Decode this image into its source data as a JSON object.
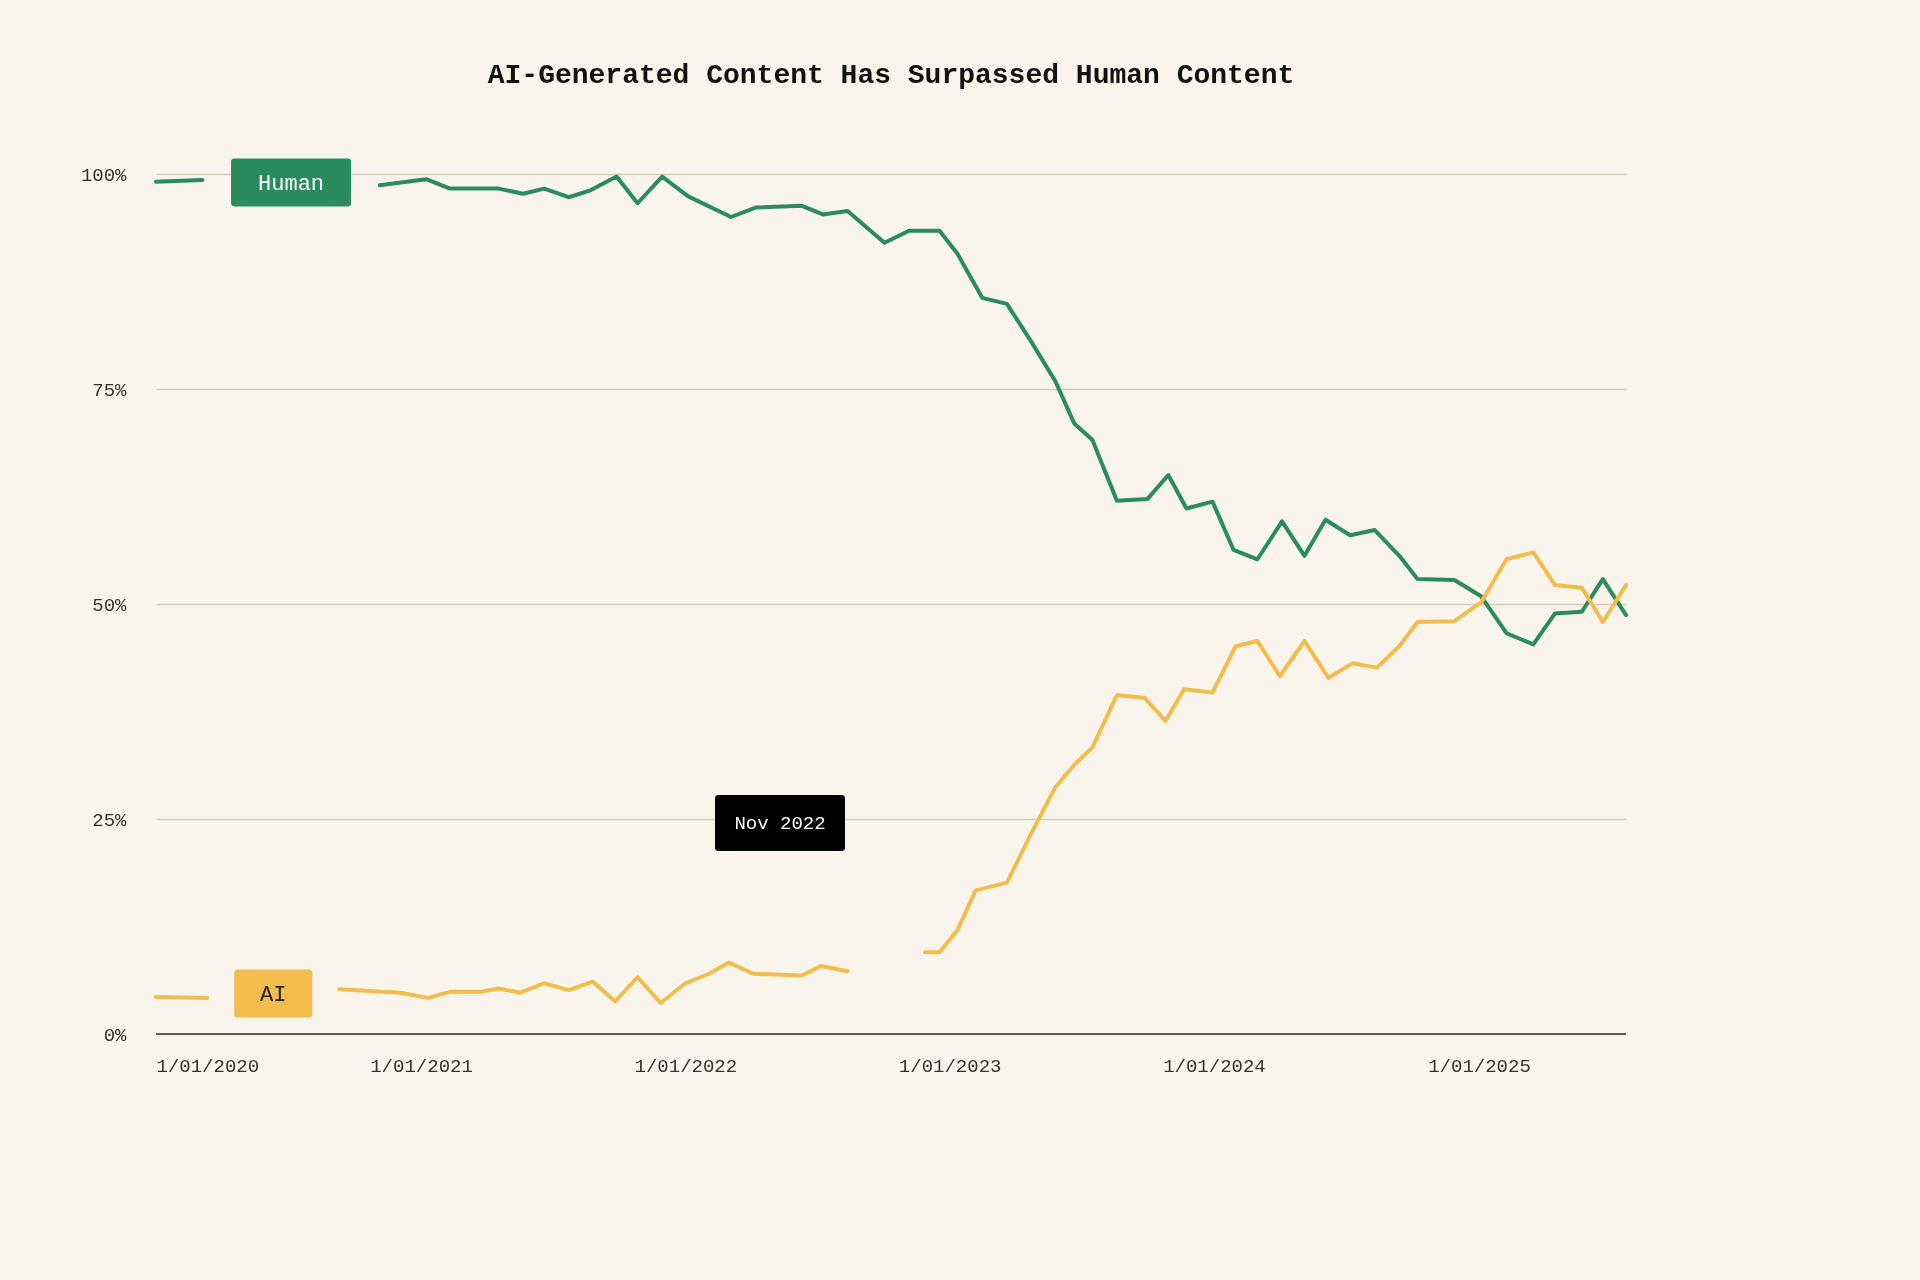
{
  "chart_data": {
    "type": "line",
    "title": "AI-Generated Content Has Surpassed Human Content",
    "xlim": [
      "2020-01-01",
      "2025-07-23"
    ],
    "xticks": [
      {
        "value": "2020-01-01",
        "label": "1/01/2020"
      },
      {
        "value": "2021-01-01",
        "label": "1/01/2021"
      },
      {
        "value": "2022-01-01",
        "label": "1/01/2022"
      },
      {
        "value": "2023-01-01",
        "label": "1/01/2023"
      },
      {
        "value": "2024-01-01",
        "label": "1/01/2024"
      },
      {
        "value": "2025-01-01",
        "label": "1/01/2025"
      }
    ],
    "ylim": [
      0,
      100
    ],
    "yticks": [
      {
        "value": 0,
        "label": "0%"
      },
      {
        "value": 25,
        "label": "25%"
      },
      {
        "value": 50,
        "label": "50%"
      },
      {
        "value": 75,
        "label": "75%"
      },
      {
        "value": 100,
        "label": "100%"
      }
    ],
    "grid": "y",
    "marker": "none",
    "line_style": "solid",
    "annotations": [
      "Nov 2022"
    ],
    "series": [
      {
        "name": "Human",
        "color": "#2a8c5c",
        "x": [
          "2020-01-01",
          "2020-03-05",
          "2020-07-01",
          "2020-11-05",
          "2021-01-08",
          "2021-02-10",
          "2021-04-18",
          "2021-05-22",
          "2021-06-20",
          "2021-07-24",
          "2021-08-23",
          "2021-09-28",
          "2021-10-27",
          "2021-11-30",
          "2022-01-05",
          "2022-03-05",
          "2022-04-08",
          "2022-06-11",
          "2022-07-10",
          "2022-08-13",
          "2022-10-03",
          "2022-11-06",
          "2022-12-18",
          "2023-01-12",
          "2023-02-15",
          "2023-03-21",
          "2023-04-23",
          "2023-05-27",
          "2023-06-22",
          "2023-07-17",
          "2023-08-20",
          "2023-10-01",
          "2023-10-30",
          "2023-11-24",
          "2023-12-30",
          "2024-01-28",
          "2024-03-01",
          "2024-04-04",
          "2024-05-05",
          "2024-06-03",
          "2024-07-07",
          "2024-08-10",
          "2024-09-13",
          "2024-10-08",
          "2024-11-28",
          "2025-01-04",
          "2025-02-08",
          "2025-03-17",
          "2025-04-16",
          "2025-05-23",
          "2025-06-21",
          "2025-07-23"
        ],
        "values": [
          99.1,
          99.3,
          null,
          98.7,
          99.4,
          98.3,
          98.3,
          97.7,
          98.3,
          97.3,
          98.1,
          99.7,
          96.6,
          99.7,
          97.4,
          95.0,
          96.1,
          96.3,
          95.3,
          95.7,
          92.0,
          93.4,
          93.4,
          90.7,
          85.6,
          84.9,
          80.6,
          75.9,
          71.0,
          69.1,
          62.0,
          62.2,
          65.0,
          61.1,
          61.9,
          56.3,
          55.2,
          59.6,
          55.6,
          59.8,
          58.0,
          58.6,
          55.6,
          52.9,
          52.8,
          50.9,
          46.6,
          45.3,
          48.9,
          49.1,
          52.9,
          48.7
        ]
      },
      {
        "name": "AI",
        "color": "#f2bd4c",
        "x": [
          "2020-01-01",
          "2020-03-12",
          "2020-06-01",
          "2020-09-10",
          "2020-12-04",
          "2021-01-11",
          "2021-02-10",
          "2021-03-24",
          "2021-04-18",
          "2021-05-18",
          "2021-06-20",
          "2021-07-24",
          "2021-08-26",
          "2021-09-26",
          "2021-10-27",
          "2021-11-28",
          "2022-01-01",
          "2022-01-31",
          "2022-03-02",
          "2022-04-05",
          "2022-06-11",
          "2022-07-07",
          "2022-08-13",
          "2022-10-01",
          "2022-11-28",
          "2022-12-18",
          "2023-01-12",
          "2023-02-06",
          "2023-03-21",
          "2023-04-23",
          "2023-05-27",
          "2023-06-22",
          "2023-07-17",
          "2023-08-20",
          "2023-09-27",
          "2023-10-26",
          "2023-11-21",
          "2023-12-30",
          "2024-01-31",
          "2024-03-01",
          "2024-04-01",
          "2024-05-05",
          "2024-06-07",
          "2024-07-10",
          "2024-08-13",
          "2024-09-13",
          "2024-10-08",
          "2024-11-28",
          "2025-01-04",
          "2025-02-08",
          "2025-03-17",
          "2025-04-16",
          "2025-05-23",
          "2025-06-21",
          "2025-07-23"
        ],
        "values": [
          4.3,
          4.2,
          null,
          5.2,
          4.8,
          4.2,
          4.9,
          4.9,
          5.3,
          4.8,
          5.9,
          5.1,
          6.1,
          3.8,
          6.6,
          3.6,
          5.9,
          6.9,
          8.3,
          7.0,
          6.8,
          7.9,
          7.3,
          null,
          9.5,
          9.5,
          12.1,
          16.7,
          17.6,
          23.2,
          28.7,
          31.3,
          33.3,
          39.4,
          39.1,
          36.4,
          40.1,
          39.7,
          45.1,
          45.7,
          41.6,
          45.7,
          41.4,
          43.1,
          42.6,
          45.1,
          47.9,
          48.0,
          50.2,
          55.2,
          56.0,
          52.2,
          51.9,
          47.9,
          52.2
        ]
      }
    ]
  }
}
